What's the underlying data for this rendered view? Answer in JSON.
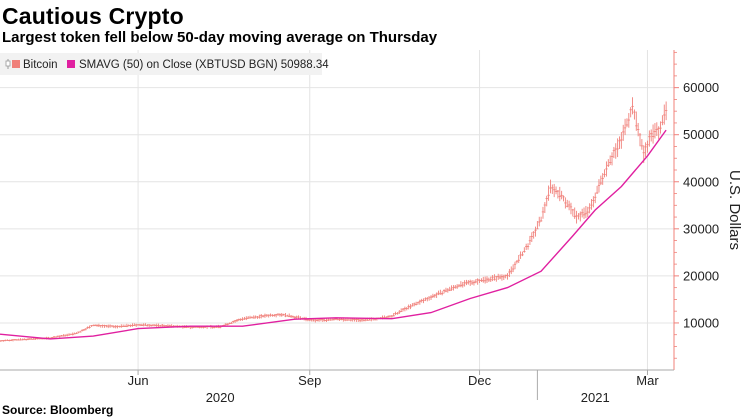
{
  "header": {
    "title": "Cautious Crypto",
    "subtitle": "Largest token fell below 50-day moving average on Thursday"
  },
  "footer": {
    "source": "Source: Bloomberg"
  },
  "legend": {
    "items": [
      {
        "label": "Bitcoin",
        "color": "#f0807a",
        "icon": "candlestick-icon"
      },
      {
        "label": "SMAVG (50)  on Close (XBTUSD BGN) 50988.34",
        "color": "#e020a0",
        "icon": "line-swatch-icon"
      }
    ]
  },
  "chart_data": {
    "type": "line",
    "ylabel": "U.S. Dollars",
    "ylim": [
      0,
      68000
    ],
    "y_ticks": [
      10000,
      20000,
      30000,
      40000,
      50000,
      60000
    ],
    "y_tick_labels": [
      "10000",
      "20000",
      "30000",
      "40000",
      "50000",
      "60000"
    ],
    "x_range": [
      "2020-03-19",
      "2021-03-12"
    ],
    "x_ticks": [
      "2020-06-01",
      "2020-09-01",
      "2020-12-01",
      "2021-03-01"
    ],
    "x_tick_labels": [
      "Jun",
      "Sep",
      "Dec",
      "Mar"
    ],
    "year_labels": [
      {
        "label": "2020",
        "at": "2020-07-15"
      },
      {
        "label": "2021",
        "at": "2021-02-01"
      }
    ],
    "grid": true,
    "legend_position": "top-left",
    "series": [
      {
        "name": "Bitcoin",
        "style": "candlestick",
        "color": "#f0807a",
        "x": [
          "2020-03-19",
          "2020-04-01",
          "2020-04-15",
          "2020-04-29",
          "2020-05-08",
          "2020-05-20",
          "2020-06-01",
          "2020-06-15",
          "2020-06-29",
          "2020-07-15",
          "2020-07-27",
          "2020-08-10",
          "2020-08-17",
          "2020-09-03",
          "2020-09-15",
          "2020-10-01",
          "2020-10-15",
          "2020-10-21",
          "2020-11-05",
          "2020-11-20",
          "2020-12-01",
          "2020-12-16",
          "2020-12-27",
          "2021-01-03",
          "2021-01-08",
          "2021-01-14",
          "2021-01-22",
          "2021-01-29",
          "2021-02-08",
          "2021-02-14",
          "2021-02-21",
          "2021-02-27",
          "2021-03-03",
          "2021-03-07",
          "2021-03-11"
        ],
        "values": [
          6200,
          6500,
          6800,
          7800,
          9500,
          9200,
          9600,
          9400,
          9100,
          9200,
          10900,
          11600,
          11800,
          10500,
          10800,
          10600,
          11400,
          12800,
          15500,
          18000,
          19000,
          20000,
          26500,
          32000,
          39000,
          37000,
          32500,
          34000,
          44000,
          48000,
          56000,
          46000,
          50000,
          51000,
          55000
        ]
      },
      {
        "name": "SMAVG (50)  on Close (XBTUSD BGN) 50988.34",
        "style": "line",
        "color": "#e020a0",
        "x": [
          "2020-03-19",
          "2020-04-15",
          "2020-05-08",
          "2020-06-01",
          "2020-06-29",
          "2020-07-27",
          "2020-08-24",
          "2020-09-15",
          "2020-10-15",
          "2020-11-05",
          "2020-11-26",
          "2020-12-16",
          "2021-01-03",
          "2021-01-20",
          "2021-02-01",
          "2021-02-15",
          "2021-03-01",
          "2021-03-11"
        ],
        "values": [
          7600,
          6600,
          7200,
          8800,
          9300,
          9300,
          10800,
          11100,
          10900,
          12200,
          15200,
          17500,
          21000,
          28500,
          34000,
          39000,
          45500,
          50988.34
        ]
      }
    ]
  }
}
